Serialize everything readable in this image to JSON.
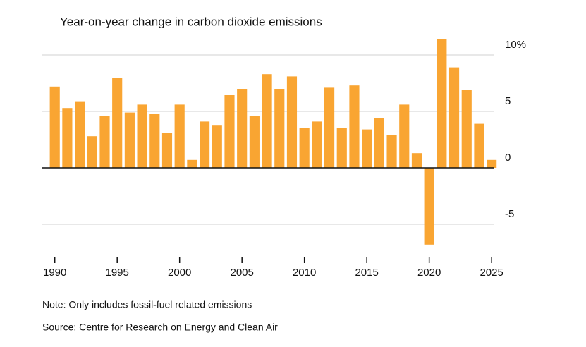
{
  "chart_data": {
    "type": "bar",
    "title": "Year-on-year change in carbon dioxide emissions",
    "note": "Note: Only includes fossil-fuel related emissions",
    "source": "Source: Centre for Research on Energy and Clean Air",
    "x": [
      1990,
      1991,
      1992,
      1993,
      1994,
      1995,
      1996,
      1997,
      1998,
      1999,
      2000,
      2001,
      2002,
      2003,
      2004,
      2005,
      2006,
      2007,
      2008,
      2009,
      2010,
      2011,
      2012,
      2013,
      2014,
      2015,
      2016,
      2017,
      2018,
      2019,
      2020,
      2021,
      2022,
      2023,
      2024,
      2025
    ],
    "values": [
      7.2,
      5.3,
      5.9,
      2.8,
      4.6,
      8.0,
      4.9,
      5.6,
      4.8,
      3.1,
      5.6,
      0.7,
      4.1,
      3.8,
      6.5,
      7.0,
      4.6,
      8.3,
      7.0,
      8.1,
      3.5,
      4.1,
      7.1,
      3.5,
      7.3,
      3.4,
      4.4,
      2.9,
      5.6,
      1.3,
      -6.8,
      11.4,
      8.9,
      6.9,
      3.9,
      0.7
    ],
    "color": "#f9a532",
    "xlim": [
      1989,
      2025.5
    ],
    "xticks": [
      1990,
      1995,
      2000,
      2005,
      2010,
      2015,
      2020,
      2025
    ],
    "ylim": [
      -7,
      12
    ],
    "yticks": [
      {
        "value": 10,
        "label": "10%"
      },
      5,
      0,
      -5
    ],
    "grid": true
  }
}
